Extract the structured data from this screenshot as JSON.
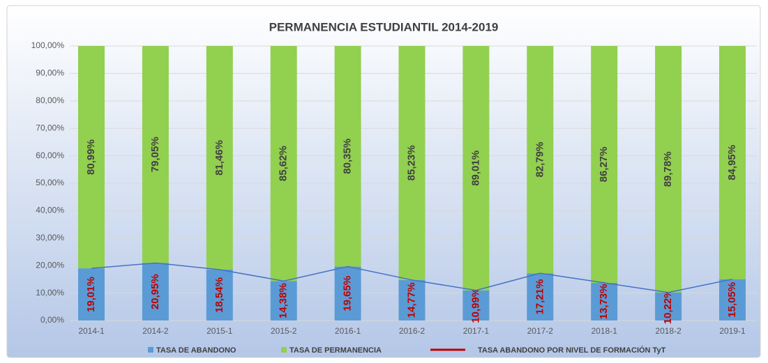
{
  "chart_data": {
    "type": "stacked_bar_line",
    "title": "PERMANENCIA ESTUDIANTIL 2014-2019",
    "categories": [
      "2014-1",
      "2014-2",
      "2015-1",
      "2015-2",
      "2016-1",
      "2016-2",
      "2017-1",
      "2017-2",
      "2018-1",
      "2018-2",
      "2019-1"
    ],
    "series": [
      {
        "name": "TASA DE ABANDONO",
        "color": "#5b9bd5",
        "label_color": "#c00000",
        "values": [
          19.01,
          20.95,
          18.54,
          14.38,
          19.65,
          14.77,
          10.99,
          17.21,
          13.73,
          10.22,
          15.05
        ],
        "value_labels": [
          "19,01%",
          "20,95%",
          "18,54%",
          "14,38%",
          "19,65%",
          "14,77%",
          "10,99%",
          "17,21%",
          "13,73%",
          "10,22%",
          "15,05%"
        ]
      },
      {
        "name": "TASA DE PERMANENCIA",
        "color": "#92d050",
        "label_color": "#404040",
        "values": [
          80.99,
          79.05,
          81.46,
          85.62,
          80.35,
          85.23,
          89.01,
          82.79,
          86.27,
          89.78,
          84.95
        ],
        "value_labels": [
          "80,99%",
          "79,05%",
          "81,46%",
          "85,62%",
          "80,35%",
          "85,23%",
          "89,01%",
          "82,79%",
          "86,27%",
          "89,78%",
          "84,95%"
        ]
      },
      {
        "name": "TASA ABANDONO POR NIVEL DE FORMACIÓN TyT",
        "type": "line",
        "color": "#c00000",
        "line_color": "#4472c4",
        "values": [
          19.01,
          20.95,
          18.54,
          14.38,
          19.65,
          14.77,
          10.99,
          17.21,
          13.73,
          10.22,
          15.05
        ]
      }
    ],
    "ylim": [
      0,
      100
    ],
    "yticks": [
      {
        "value": 0,
        "label": "0,00%"
      },
      {
        "value": 10,
        "label": "10,00%"
      },
      {
        "value": 20,
        "label": "20,00%"
      },
      {
        "value": 30,
        "label": "30,00%"
      },
      {
        "value": 40,
        "label": "40,00%"
      },
      {
        "value": 50,
        "label": "50,00%"
      },
      {
        "value": 60,
        "label": "60,00%"
      },
      {
        "value": 70,
        "label": "70,00%"
      },
      {
        "value": 80,
        "label": "80,00%"
      },
      {
        "value": 90,
        "label": "90,00%"
      },
      {
        "value": 100,
        "label": "100,00%"
      }
    ],
    "grid": true,
    "legend": "bottom"
  }
}
